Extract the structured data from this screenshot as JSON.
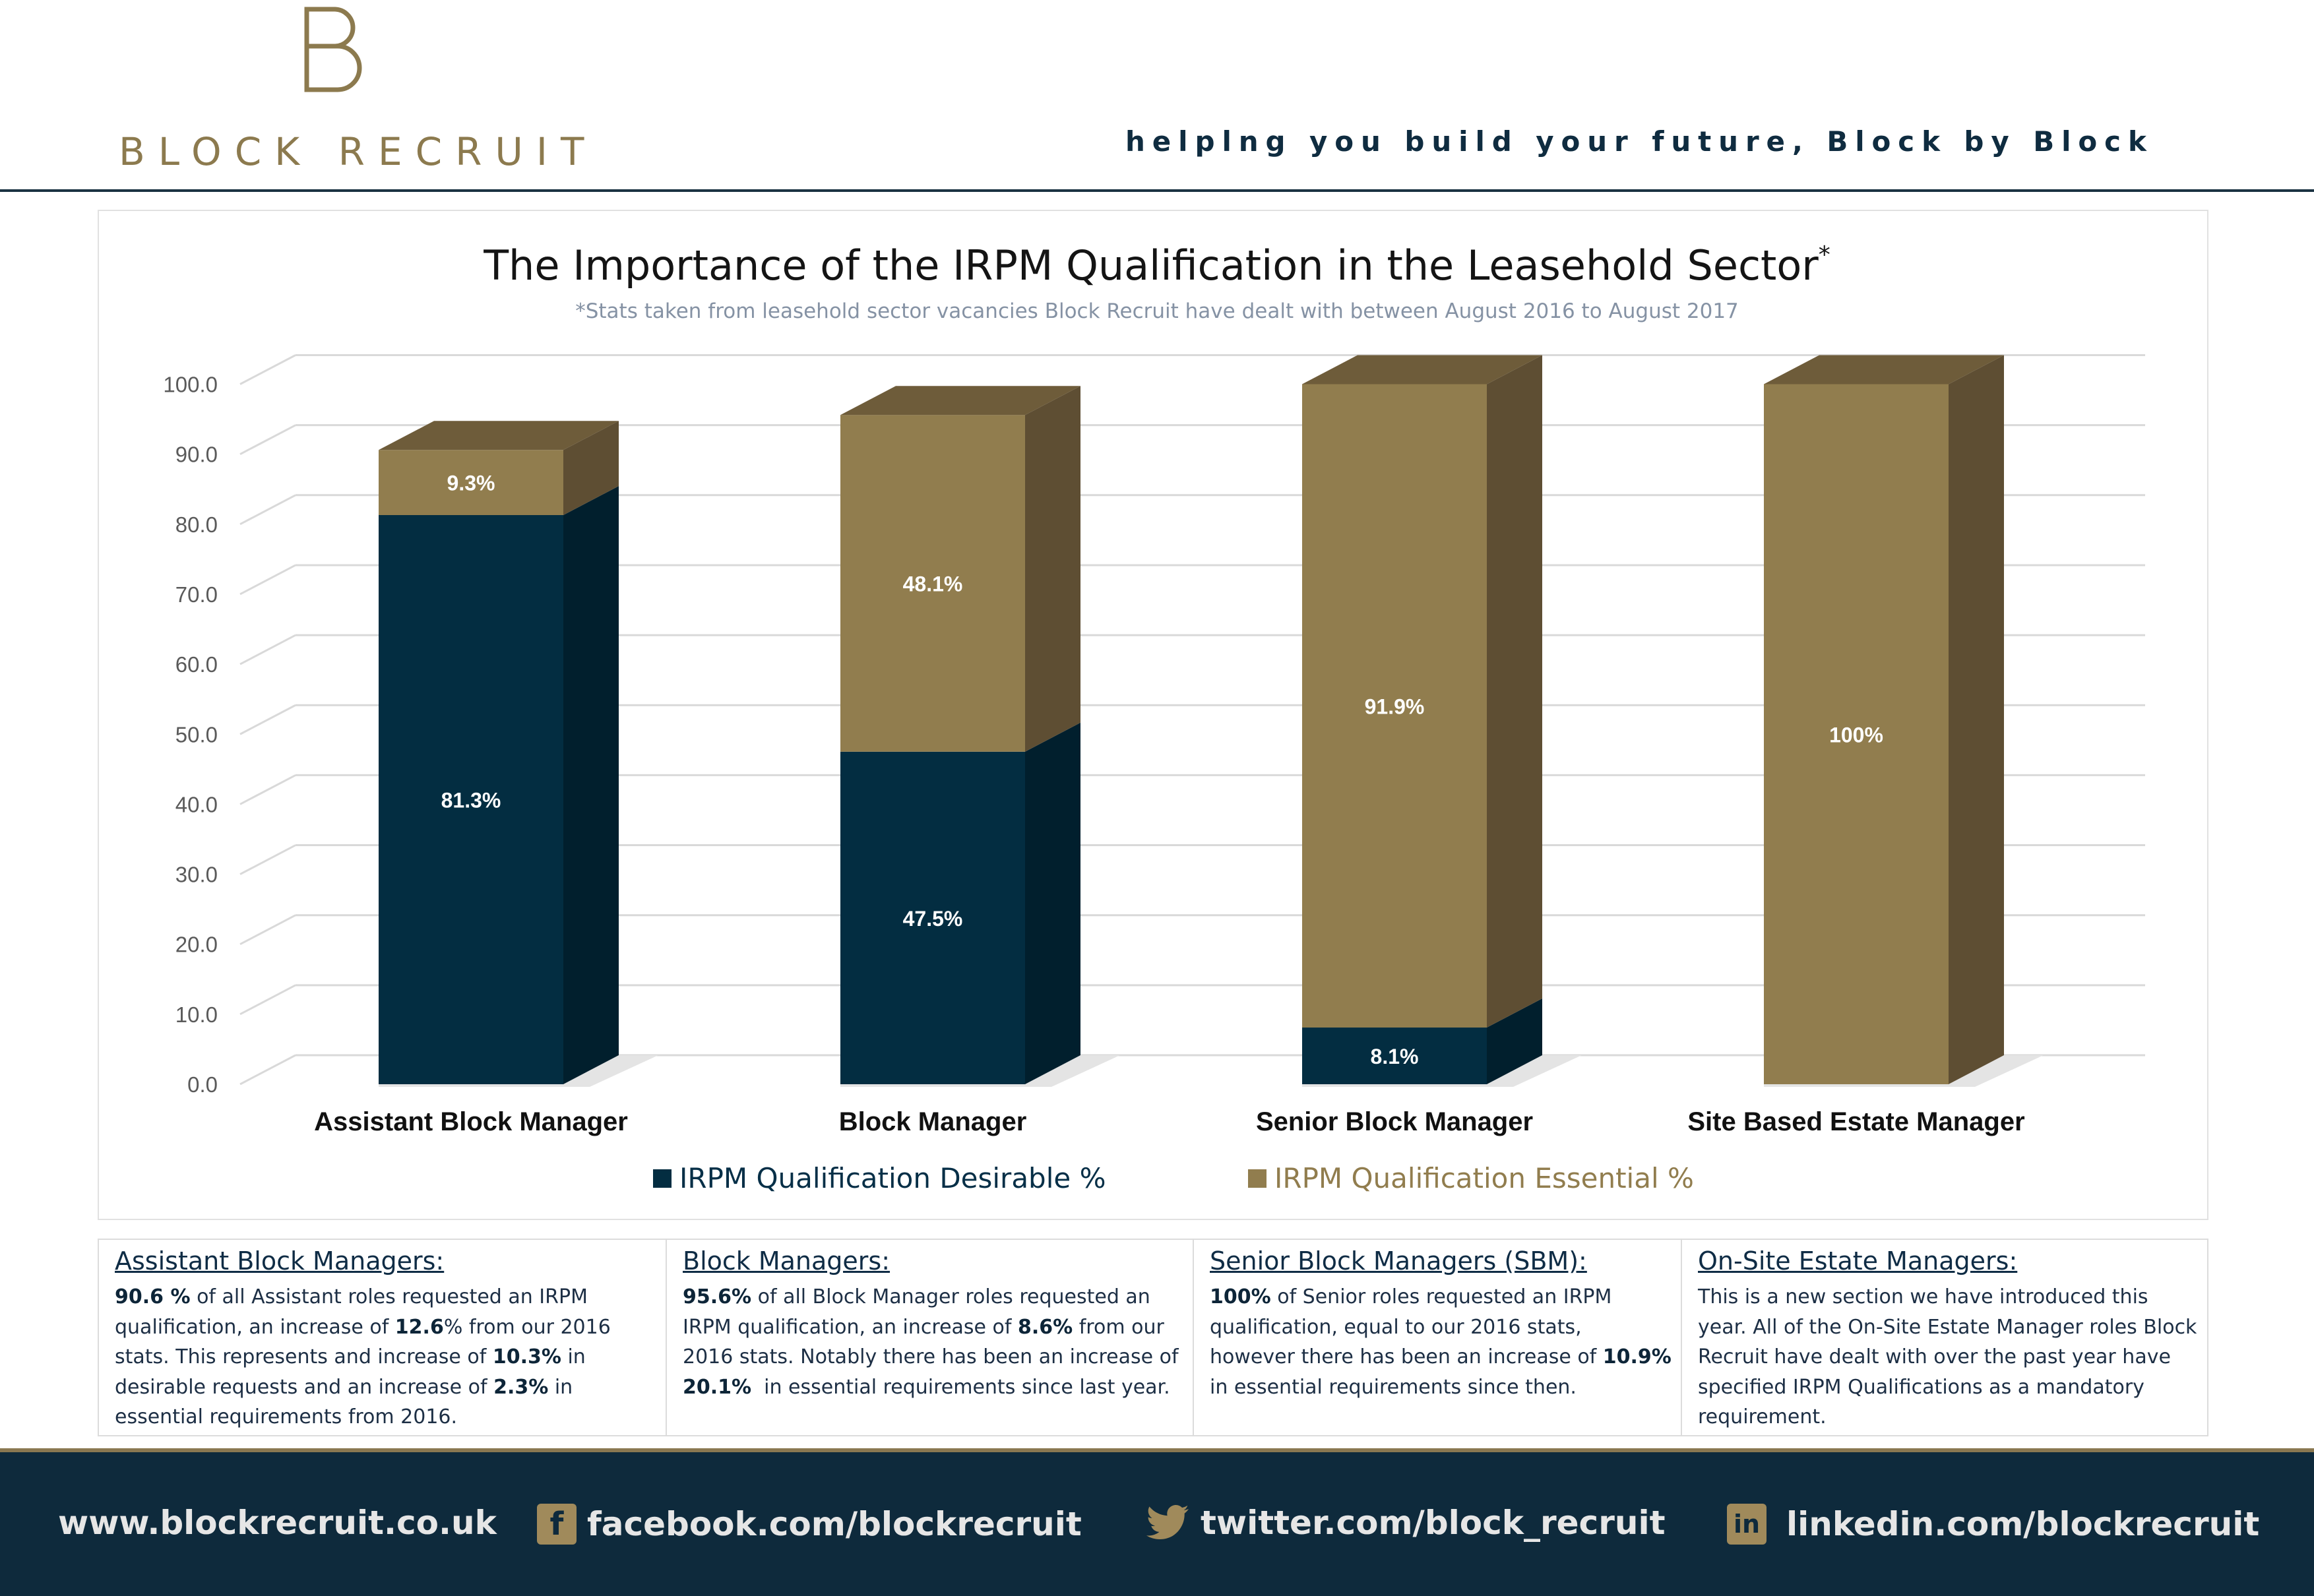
{
  "header": {
    "brand": "BLOCK RECRUIT",
    "tagline": "helplng you build your future, Block by Block",
    "logo_icon": "b-monogram-icon"
  },
  "chart_data": {
    "type": "bar",
    "stacked": true,
    "title": "The Importance of the IRPM Qualification in the Leasehold Sector",
    "title_mark": "*",
    "subtitle": "*Stats taken from leasehold sector vacancies Block Recruit have dealt with between August 2016 to August 2017",
    "categories": [
      "Assistant Block Manager",
      "Block Manager",
      "Senior Block Manager",
      "Site Based Estate Manager"
    ],
    "series": [
      {
        "name": "IRPM Qualification Desirable %",
        "values": [
          81.3,
          47.5,
          8.1,
          0
        ],
        "labels": [
          "81.3%",
          "47.5%",
          "8.1%",
          ""
        ],
        "color": "#032d41"
      },
      {
        "name": "IRPM Qualification Essential %",
        "values": [
          9.3,
          48.1,
          91.9,
          100
        ],
        "labels": [
          "9.3%",
          "48.1%",
          "91.9%",
          "100%"
        ],
        "color": "#917d4e"
      }
    ],
    "y_ticks": [
      "0.0",
      "10.0",
      "20.0",
      "30.0",
      "40.0",
      "50.0",
      "60.0",
      "70.0",
      "80.0",
      "90.0",
      "100.0"
    ],
    "ylim": [
      0,
      100
    ],
    "grid": true,
    "legend_position": "bottom"
  },
  "notes": [
    {
      "title": "Assistant Block Managers:",
      "body": "<b>90.6 %</b> of all Assistant roles requested an IRPM qualification, an increase of <b>12.6</b>% from our 2016 stats. This represents and increase of <b>10.3%</b> in desirable requests and an increase of <b>2.3%</b> in essential requirements from 2016."
    },
    {
      "title": "Block Managers:",
      "body": "<b>95.6%</b> of all Block Manager roles requested an IRPM qualification, an increase of <b>8.6%</b> from our 2016 stats. Notably there has been an increase of <b>20.1%</b>&nbsp; in essential requirements since last year."
    },
    {
      "title": "Senior Block Managers (SBM):",
      "body": "<b>100%</b> of Senior roles requested an IRPM qualification, equal to our 2016 stats, however there has been an increase of <b>10.9%</b> in essential requirements since then."
    },
    {
      "title": "On-Site Estate Managers:",
      "body": "This is a new section we have introduced this year. All of the On-Site Estate Manager roles Block Recruit have dealt with over the past year have specified IRPM Qualifications as a mandatory requirement."
    }
  ],
  "footer": {
    "website": "www.blockrecruit.co.uk",
    "facebook": "facebook.com/blockrecruit",
    "twitter": "twitter.com/block_recruit",
    "linkedin": "linkedin.com/blockrecruit",
    "facebook_icon": "facebook-icon",
    "twitter_icon": "twitter-icon",
    "linkedin_icon": "linkedin-icon",
    "facebook_glyph": "f",
    "linkedin_glyph": "in"
  }
}
